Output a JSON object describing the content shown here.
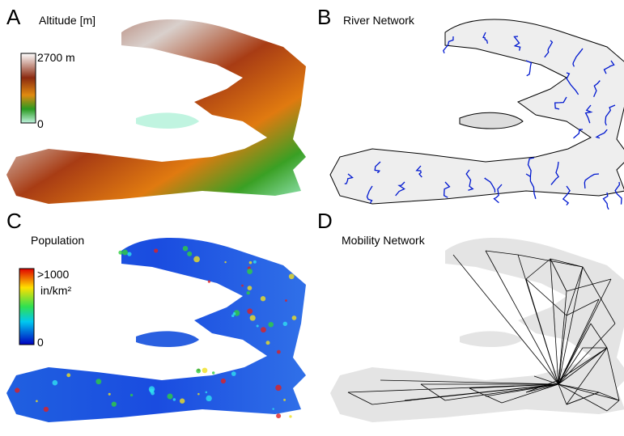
{
  "panels": [
    {
      "letter": "A",
      "title": "Altitude [m]",
      "colorbar": {
        "max_label": "2700 m",
        "min_label": "0"
      }
    },
    {
      "letter": "B",
      "title": "River Network"
    },
    {
      "letter": "C",
      "title": "Population",
      "colorbar": {
        "max_label": ">1000",
        "unit": "in/km²",
        "min_label": "0"
      }
    },
    {
      "letter": "D",
      "title": "Mobility Network"
    }
  ]
}
